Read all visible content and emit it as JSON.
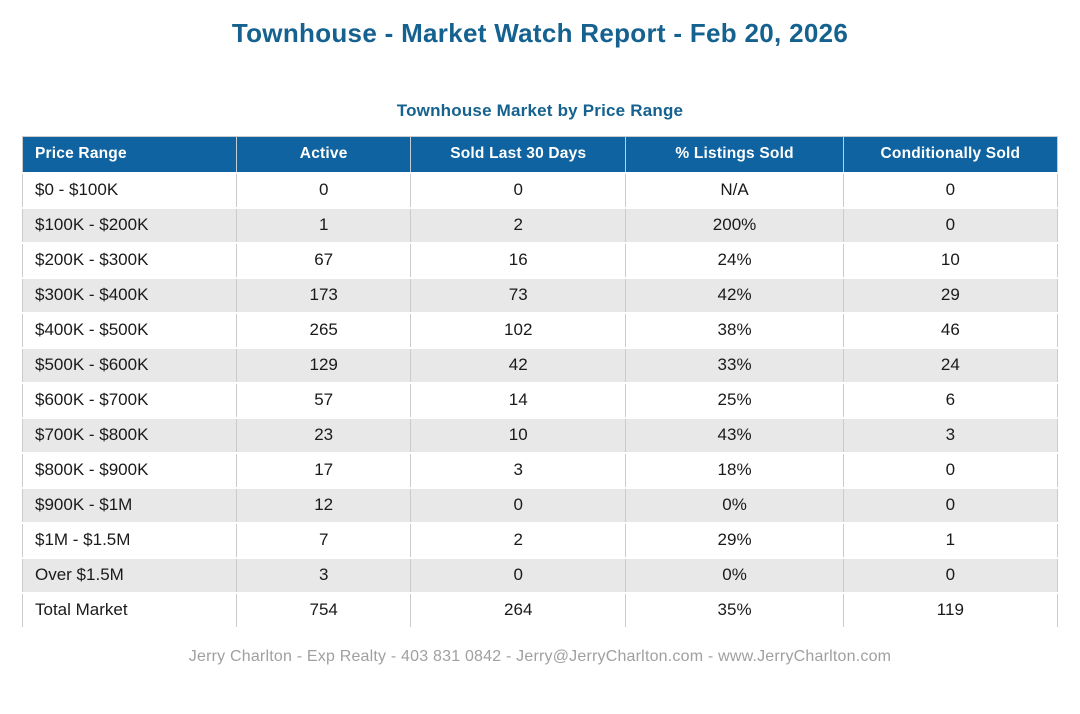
{
  "header": {
    "title": "Townhouse - Market Watch Report - Feb 20, 2026"
  },
  "table": {
    "title": "Townhouse Market by Price Range",
    "columns": [
      "Price Range",
      "Active",
      "Sold Last 30 Days",
      "% Listings Sold",
      "Conditionally Sold"
    ],
    "rows": [
      [
        "$0 - $100K",
        "0",
        "0",
        "N/A",
        "0"
      ],
      [
        "$100K - $200K",
        "1",
        "2",
        "200%",
        "0"
      ],
      [
        "$200K - $300K",
        "67",
        "16",
        "24%",
        "10"
      ],
      [
        "$300K - $400K",
        "173",
        "73",
        "42%",
        "29"
      ],
      [
        "$400K - $500K",
        "265",
        "102",
        "38%",
        "46"
      ],
      [
        "$500K - $600K",
        "129",
        "42",
        "33%",
        "24"
      ],
      [
        "$600K - $700K",
        "57",
        "14",
        "25%",
        "6"
      ],
      [
        "$700K - $800K",
        "23",
        "10",
        "43%",
        "3"
      ],
      [
        "$800K - $900K",
        "17",
        "3",
        "18%",
        "0"
      ],
      [
        "$900K - $1M",
        "12",
        "0",
        "0%",
        "0"
      ],
      [
        "$1M - $1.5M",
        "7",
        "2",
        "29%",
        "1"
      ],
      [
        "Over $1.5M",
        "3",
        "0",
        "0%",
        "0"
      ],
      [
        "Total Market",
        "754",
        "264",
        "35%",
        "119"
      ]
    ]
  },
  "footer": {
    "text": "Jerry Charlton - Exp Realty - 403 831 0842 - Jerry@JerryCharlton.com - www.JerryCharlton.com"
  },
  "colors": {
    "title_blue": "#15618f",
    "table_header_bg": "#0f63a0",
    "table_header_text": "#ffffff",
    "row_alt_bg": "#e8e8e8",
    "border_gray": "#cbcbcb",
    "footer_text": "#a0a0a0"
  }
}
